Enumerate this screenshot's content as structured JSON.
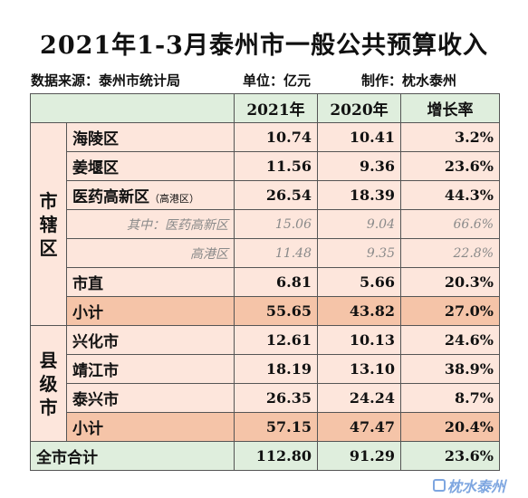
{
  "title": "2021年1-3月泰州市一般公共预算收入",
  "subtitle": {
    "source": "数据来源：泰州市统计局",
    "unit": "单位：亿元",
    "maker": "制作：枕水泰州"
  },
  "table": {
    "headers": [
      "2021年",
      "2020年",
      "增长率"
    ],
    "group1_label": "市辖区",
    "group2_label": "县级市",
    "rows": [
      {
        "label": "海陵区",
        "y2021": "10.74",
        "y2020": "10.41",
        "growth": "3.2%"
      },
      {
        "label": "姜堰区",
        "y2021": "11.56",
        "y2020": "9.36",
        "growth": "23.6%"
      },
      {
        "label": "医药高新区",
        "note": "（高港区）",
        "y2021": "26.54",
        "y2020": "18.39",
        "growth": "44.3%"
      },
      {
        "label": "其中：医药高新区",
        "y2021": "15.06",
        "y2020": "9.04",
        "growth": "66.6%"
      },
      {
        "label": "高港区",
        "y2021": "11.48",
        "y2020": "9.35",
        "growth": "22.8%"
      },
      {
        "label": "市直",
        "y2021": "6.81",
        "y2020": "5.66",
        "growth": "20.3%"
      },
      {
        "label": "小计",
        "y2021": "55.65",
        "y2020": "43.82",
        "growth": "27.0%"
      },
      {
        "label": "兴化市",
        "y2021": "12.61",
        "y2020": "10.13",
        "growth": "24.6%"
      },
      {
        "label": "靖江市",
        "y2021": "18.19",
        "y2020": "13.10",
        "growth": "38.9%"
      },
      {
        "label": "泰兴市",
        "y2021": "26.35",
        "y2020": "24.24",
        "growth": "8.7%"
      },
      {
        "label": "小计",
        "y2021": "57.15",
        "y2020": "47.47",
        "growth": "20.4%"
      }
    ],
    "total": {
      "label": "全市合计",
      "y2021": "112.80",
      "y2020": "91.29",
      "growth": "23.6%"
    }
  },
  "watermark": "枕水泰州",
  "colors": {
    "header_bg": "#dfeedd",
    "row_bg": "#fde6dc",
    "subtotal_bg": "#f5c4a8",
    "watermark": "#7ea6e0"
  }
}
